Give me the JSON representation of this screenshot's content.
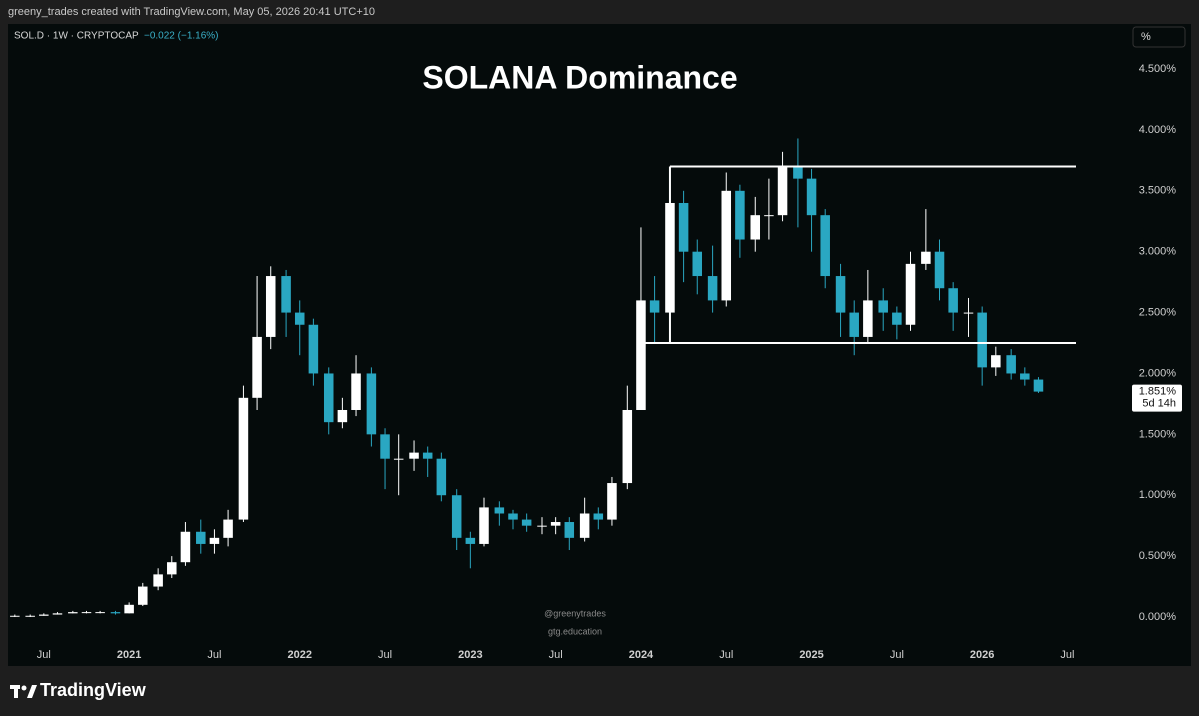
{
  "header": {
    "credit": "greeny_trades created with TradingView.com, May 05, 2026 20:41 UTC+10",
    "symbol": "SOL.D · 1W · CRYPTOCAP",
    "change": "−0.022 (−1.16%)",
    "scale_button": "%"
  },
  "footer": {
    "brand": "TradingView"
  },
  "chart_data": {
    "type": "candlestick",
    "title": "SOLANA Dominance",
    "watermark": [
      "@greenytrades",
      "gtg.education"
    ],
    "up_color": "#ffffff",
    "down_color": "#2aa7c2",
    "grid": false,
    "x": [
      2020.33,
      2020.42,
      2020.5,
      2020.58,
      2020.67,
      2020.75,
      2020.83,
      2020.92,
      2021.0,
      2021.08,
      2021.17,
      2021.25,
      2021.33,
      2021.42,
      2021.5,
      2021.58,
      2021.67,
      2021.75,
      2021.83,
      2021.92,
      2022.0,
      2022.08,
      2022.17,
      2022.25,
      2022.33,
      2022.42,
      2022.5,
      2022.58,
      2022.67,
      2022.75,
      2022.83,
      2022.92,
      2023.0,
      2023.08,
      2023.17,
      2023.25,
      2023.33,
      2023.42,
      2023.5,
      2023.58,
      2023.67,
      2023.75,
      2023.83,
      2023.92,
      2024.0,
      2024.08,
      2024.17,
      2024.25,
      2024.33,
      2024.42,
      2024.5,
      2024.58,
      2024.67,
      2024.75,
      2024.83,
      2024.92,
      2025.0,
      2025.08,
      2025.17,
      2025.25,
      2025.33,
      2025.42,
      2025.5,
      2025.58,
      2025.67,
      2025.75,
      2025.83,
      2025.92,
      2026.0,
      2026.08,
      2026.17,
      2026.25,
      2026.33
    ],
    "open": [
      0.01,
      0.01,
      0.01,
      0.02,
      0.03,
      0.04,
      0.04,
      0.04,
      0.03,
      0.1,
      0.25,
      0.35,
      0.45,
      0.7,
      0.6,
      0.65,
      0.8,
      1.8,
      2.3,
      2.8,
      2.5,
      2.4,
      2.0,
      1.6,
      1.7,
      2.0,
      1.5,
      1.3,
      1.3,
      1.35,
      1.3,
      1.0,
      0.65,
      0.6,
      0.9,
      0.85,
      0.8,
      0.75,
      0.75,
      0.78,
      0.65,
      0.85,
      0.8,
      1.1,
      1.7,
      2.6,
      2.5,
      3.4,
      3.0,
      2.8,
      2.6,
      3.5,
      3.1,
      3.3,
      3.3,
      3.7,
      3.6,
      3.3,
      2.8,
      2.5,
      2.3,
      2.6,
      2.5,
      2.4,
      2.9,
      3.0,
      2.7,
      2.5,
      2.5,
      2.05,
      2.15,
      2.0,
      1.95
    ],
    "high": [
      0.02,
      0.02,
      0.03,
      0.04,
      0.05,
      0.05,
      0.05,
      0.05,
      0.12,
      0.28,
      0.4,
      0.5,
      0.78,
      0.8,
      0.72,
      0.88,
      1.9,
      2.8,
      2.88,
      2.85,
      2.6,
      2.45,
      2.05,
      1.8,
      2.15,
      2.05,
      1.55,
      1.5,
      1.45,
      1.4,
      1.35,
      1.05,
      0.7,
      0.98,
      0.95,
      0.88,
      0.85,
      0.82,
      0.82,
      0.82,
      0.98,
      0.9,
      1.15,
      1.9,
      3.2,
      2.8,
      3.65,
      3.5,
      3.1,
      3.05,
      3.65,
      3.55,
      3.45,
      3.6,
      3.82,
      3.93,
      3.68,
      3.35,
      2.9,
      2.6,
      2.85,
      2.7,
      2.55,
      3.0,
      3.35,
      3.1,
      2.75,
      2.62,
      2.55,
      2.22,
      2.2,
      2.05,
      1.97
    ],
    "low": [
      0.0,
      0.0,
      0.01,
      0.02,
      0.03,
      0.03,
      0.03,
      0.02,
      0.03,
      0.09,
      0.22,
      0.32,
      0.42,
      0.52,
      0.52,
      0.58,
      0.78,
      1.7,
      2.2,
      2.3,
      2.15,
      1.9,
      1.5,
      1.55,
      1.65,
      1.4,
      1.05,
      1.0,
      1.2,
      1.15,
      0.95,
      0.55,
      0.4,
      0.58,
      0.75,
      0.72,
      0.7,
      0.68,
      0.68,
      0.55,
      0.62,
      0.72,
      0.75,
      1.05,
      1.7,
      2.25,
      2.4,
      2.75,
      2.65,
      2.5,
      2.55,
      2.95,
      3.0,
      3.1,
      3.25,
      3.2,
      3.0,
      2.7,
      2.3,
      2.15,
      2.25,
      2.35,
      2.28,
      2.35,
      2.85,
      2.6,
      2.35,
      2.3,
      1.9,
      1.98,
      1.95,
      1.9,
      1.84
    ],
    "close": [
      0.01,
      0.01,
      0.02,
      0.03,
      0.04,
      0.04,
      0.04,
      0.03,
      0.1,
      0.25,
      0.35,
      0.45,
      0.7,
      0.6,
      0.65,
      0.8,
      1.8,
      2.3,
      2.8,
      2.5,
      2.4,
      2.0,
      1.6,
      1.7,
      2.0,
      1.5,
      1.3,
      1.3,
      1.35,
      1.3,
      1.0,
      0.65,
      0.6,
      0.9,
      0.85,
      0.8,
      0.75,
      0.75,
      0.78,
      0.65,
      0.85,
      0.8,
      1.1,
      1.7,
      2.6,
      2.5,
      3.4,
      3.0,
      2.8,
      2.6,
      3.5,
      3.1,
      3.3,
      3.3,
      3.7,
      3.6,
      3.3,
      2.8,
      2.5,
      2.3,
      2.6,
      2.5,
      2.4,
      2.9,
      3.0,
      2.7,
      2.5,
      2.5,
      2.05,
      2.15,
      2.0,
      1.95,
      1.851
    ],
    "xlim": [
      2020.29,
      2026.72
    ],
    "xticks": [
      {
        "value": 2020.5,
        "label": "Jul"
      },
      2021,
      {
        "value": 2021.5,
        "label": "Jul"
      },
      2022,
      {
        "value": 2022.5,
        "label": "Jul"
      },
      2023,
      {
        "value": 2023.5,
        "label": "Jul"
      },
      2024,
      {
        "value": 2024.5,
        "label": "Jul"
      },
      2025,
      {
        "value": 2025.5,
        "label": "Jul"
      },
      2026,
      {
        "value": 2026.5,
        "label": "Jul"
      }
    ],
    "ylim": [
      -0.23,
      4.87
    ],
    "yticks": [
      {
        "value": 0,
        "label": "0.000%"
      },
      {
        "value": 0.5,
        "label": "0.500%"
      },
      {
        "value": 1,
        "label": "1.000%"
      },
      {
        "value": 1.5,
        "label": "1.500%"
      },
      {
        "value": 2,
        "label": "2.000%"
      },
      {
        "value": 2.5,
        "label": "2.500%"
      },
      {
        "value": 3,
        "label": "3.000%"
      },
      {
        "value": 3.5,
        "label": "3.500%"
      },
      {
        "value": 4,
        "label": "4.000%"
      },
      {
        "value": 4.5,
        "label": "4.500%"
      }
    ],
    "last_price": {
      "value": 1.851,
      "label": "1.851%"
    },
    "countdown": "5d 14h",
    "trendlines": [
      {
        "x": [
          2024.17,
          2026.55
        ],
        "y": [
          3.7,
          3.7
        ]
      },
      {
        "x": [
          2024.0,
          2026.55
        ],
        "y": [
          2.25,
          2.25
        ]
      },
      {
        "x": [
          2024.17,
          2024.17
        ],
        "y": [
          2.25,
          3.7
        ]
      }
    ]
  }
}
